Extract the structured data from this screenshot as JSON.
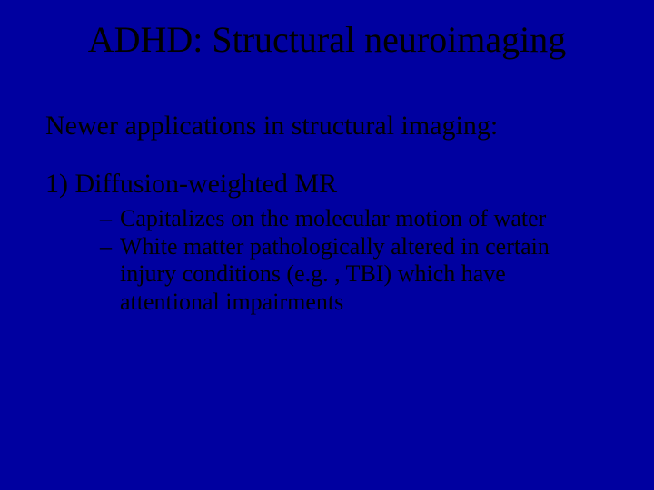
{
  "title": "ADHD: Structural neuroimaging",
  "subhead": "Newer applications in structural imaging:",
  "item1": "1) Diffusion-weighted MR",
  "bullets": {
    "b1": "Capitalizes on the molecular motion of water",
    "b2": "White matter pathologically altered in certain injury conditions (e.g. , TBI) which have attentional impairments"
  },
  "colors": {
    "background": "#0000a0",
    "text": "#000000"
  },
  "fonts": {
    "family": "Times New Roman",
    "title_size_pt": 40,
    "subhead_size_pt": 30,
    "numbered_size_pt": 30,
    "bullet_size_pt": 26
  }
}
